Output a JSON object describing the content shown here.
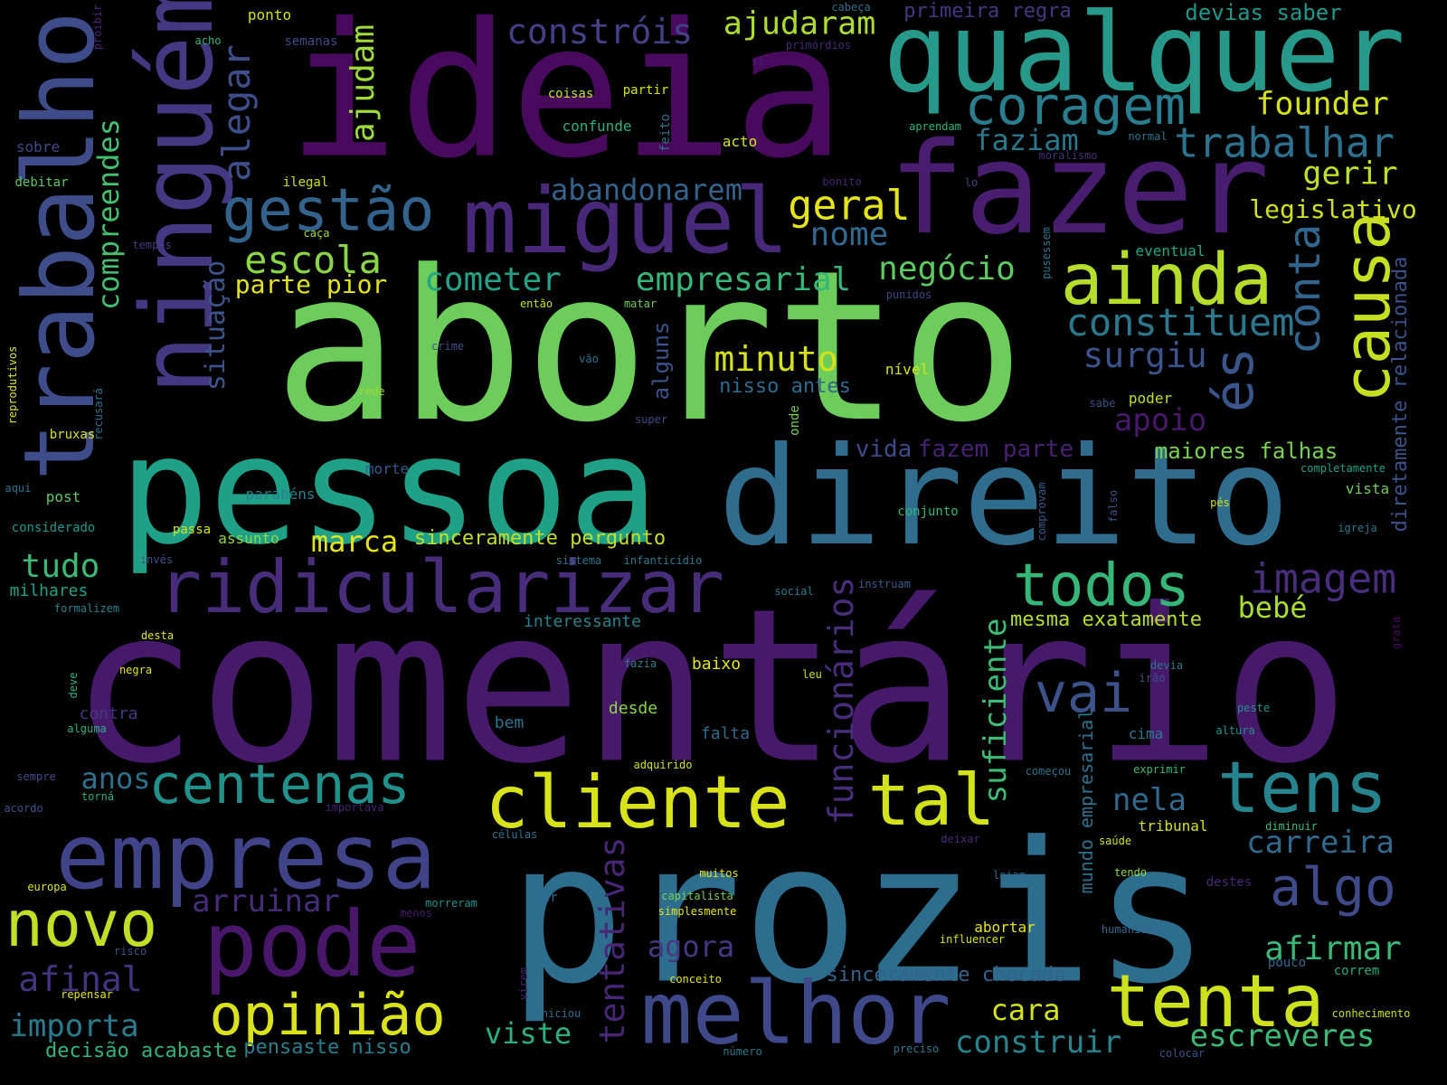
{
  "words": [
    {
      "text": "comentário",
      "color": "#46196a"
    },
    {
      "text": "aborto",
      "color": "#6ccd5a"
    },
    {
      "text": "prozis",
      "color": "#2d6e8e"
    },
    {
      "text": "ideia",
      "color": "#470a5c"
    },
    {
      "text": "pessoa",
      "color": "#1fa187"
    },
    {
      "text": "direito",
      "color": "#2e6d8e"
    },
    {
      "text": "fazer",
      "color": "#481d6f"
    },
    {
      "text": "qualquer",
      "color": "#26998a"
    },
    {
      "text": "ninguém",
      "color": "#453882"
    },
    {
      "text": "trabalho",
      "color": "#3e4c8a"
    },
    {
      "text": "miguel",
      "color": "#482878"
    },
    {
      "text": "empresa",
      "color": "#404387"
    },
    {
      "text": "pode",
      "color": "#481769"
    },
    {
      "text": "melhor",
      "color": "#3f4889"
    },
    {
      "text": "ridicularizar",
      "color": "#472c7a"
    },
    {
      "text": "cliente",
      "color": "#d8e219"
    },
    {
      "text": "tenta",
      "color": "#cde11d"
    },
    {
      "text": "tens",
      "color": "#25848e"
    },
    {
      "text": "tal",
      "color": "#d2e21b"
    },
    {
      "text": "ainda",
      "color": "#b5de2b"
    },
    {
      "text": "causa",
      "color": "#c6e021"
    },
    {
      "text": "novo",
      "color": "#c0df25"
    },
    {
      "text": "opinião",
      "color": "#dae319"
    },
    {
      "text": "todos",
      "color": "#35b779"
    },
    {
      "text": "gestão",
      "color": "#33638d"
    },
    {
      "text": "centenas",
      "color": "#21918c"
    },
    {
      "text": "coragem",
      "color": "#287d8e"
    },
    {
      "text": "trabalhar",
      "color": "#2c728e"
    },
    {
      "text": "algo",
      "color": "#3f4a8a"
    },
    {
      "text": "imagem",
      "color": "#472d7b"
    },
    {
      "text": "vai",
      "color": "#3b528b"
    },
    {
      "text": "conta",
      "color": "#32658e"
    },
    {
      "text": "és",
      "color": "#39558c"
    },
    {
      "text": "alegar",
      "color": "#3d4e8a"
    },
    {
      "text": "constróis",
      "color": "#424086"
    },
    {
      "text": "ajudaram",
      "color": "#addc30"
    },
    {
      "text": "compreendes",
      "color": "#44bf70"
    },
    {
      "text": "ajudam",
      "color": "#a0da39"
    },
    {
      "text": "situação",
      "color": "#3b528b"
    },
    {
      "text": "escola",
      "color": "#8bd646"
    },
    {
      "text": "geral",
      "color": "#e5e419"
    },
    {
      "text": "nome",
      "color": "#31688e"
    },
    {
      "text": "negócio",
      "color": "#5ec962"
    },
    {
      "text": "abandonarem",
      "color": "#33638d"
    },
    {
      "text": "cometer",
      "color": "#20a386"
    },
    {
      "text": "empresarial",
      "color": "#35b779"
    },
    {
      "text": "constituem",
      "color": "#2a788e"
    },
    {
      "text": "surgiu",
      "color": "#3b528b"
    },
    {
      "text": "founder",
      "color": "#d5e21a"
    },
    {
      "text": "gerir",
      "color": "#bddf26"
    },
    {
      "text": "faziam",
      "color": "#2a788e"
    },
    {
      "text": "legislativo",
      "color": "#d0e11c"
    },
    {
      "text": "minuto",
      "color": "#d5e21a"
    },
    {
      "text": "apoio",
      "color": "#48186a"
    },
    {
      "text": "funcionários",
      "color": "#472d7b"
    },
    {
      "text": "suficiente",
      "color": "#3dbc74"
    },
    {
      "text": "tentativas",
      "color": "#482677"
    },
    {
      "text": "arruinar",
      "color": "#472c7a"
    },
    {
      "text": "afinal",
      "color": "#46337f"
    },
    {
      "text": "importa",
      "color": "#287c8e"
    },
    {
      "text": "viste",
      "color": "#2ab07f"
    },
    {
      "text": "agora",
      "color": "#453781"
    },
    {
      "text": "cara",
      "color": "#d2e21b"
    },
    {
      "text": "construir",
      "color": "#25848e"
    },
    {
      "text": "escreveres",
      "color": "#3aba76"
    },
    {
      "text": "afirmar",
      "color": "#3aba76"
    },
    {
      "text": "carreira",
      "color": "#31688e"
    },
    {
      "text": "nela",
      "color": "#31688e"
    },
    {
      "text": "bebé",
      "color": "#a8db34"
    },
    {
      "text": "marca",
      "color": "#e5e419"
    },
    {
      "text": "tudo",
      "color": "#3aba76"
    },
    {
      "text": "anos",
      "color": "#2d708e"
    },
    {
      "text": "parte pior",
      "color": "#e2e418"
    },
    {
      "text": "vida",
      "color": "#3e4a89"
    },
    {
      "text": "fazem parte",
      "color": "#482173"
    },
    {
      "text": "alguns",
      "color": "#3b528b"
    },
    {
      "text": "maiores falhas",
      "color": "#7ad151"
    },
    {
      "text": "mesma exatamente",
      "color": "#b5de2b"
    },
    {
      "text": "sinceramente pergunto",
      "color": "#c2df23"
    },
    {
      "text": "sinceramente chocado",
      "color": "#33638d"
    },
    {
      "text": "decisão acabaste",
      "color": "#2fb47c"
    },
    {
      "text": "pensaste nisso",
      "color": "#287d8e"
    },
    {
      "text": "primeira regra",
      "color": "#453882"
    },
    {
      "text": "devias saber",
      "color": "#1f988b"
    },
    {
      "text": "diretamente relacionada",
      "color": "#3b528b"
    },
    {
      "text": "nisso antes",
      "color": "#31688e"
    },
    {
      "text": "interessante",
      "color": "#26828e"
    },
    {
      "text": "mundo empresarial",
      "color": "#2d708e"
    },
    {
      "text": "milhares",
      "color": "#1fa187"
    },
    {
      "text": "desde",
      "color": "#8bd646"
    },
    {
      "text": "baixo",
      "color": "#e5e419"
    },
    {
      "text": "falta",
      "color": "#31688e"
    },
    {
      "text": "bem",
      "color": "#2c728e"
    },
    {
      "text": "contra",
      "color": "#453882"
    },
    {
      "text": "assunto",
      "color": "#8fd744"
    },
    {
      "text": "passa",
      "color": "#d5e21a"
    },
    {
      "text": "parabéns",
      "color": "#26828e"
    },
    {
      "text": "morte",
      "color": "#365c8d"
    },
    {
      "text": "post",
      "color": "#5ec962"
    },
    {
      "text": "nível",
      "color": "#d8e219"
    },
    {
      "text": "poder",
      "color": "#c2df23"
    },
    {
      "text": "vista",
      "color": "#6ccd5a"
    },
    {
      "text": "cima",
      "color": "#2a788e"
    },
    {
      "text": "tribunal",
      "color": "#d8e219"
    },
    {
      "text": "abortar",
      "color": "#e5e419"
    },
    {
      "text": "acto",
      "color": "#d5e21a"
    },
    {
      "text": "ponto",
      "color": "#d2e21b"
    },
    {
      "text": "semanas",
      "color": "#3e4a89"
    },
    {
      "text": "acho",
      "color": "#35b779"
    },
    {
      "text": "proibir",
      "color": "#482475"
    },
    {
      "text": "cabeça",
      "color": "#2c728e"
    },
    {
      "text": "primórdios",
      "color": "#482777"
    },
    {
      "text": "si",
      "color": "#481a6c"
    },
    {
      "text": "coisas",
      "color": "#c0df25"
    },
    {
      "text": "partir",
      "color": "#d5e21a"
    },
    {
      "text": "confunde",
      "color": "#29af7f"
    },
    {
      "text": "feito",
      "color": "#2c728e"
    },
    {
      "text": "aprendam",
      "color": "#2db27d"
    },
    {
      "text": "normal",
      "color": "#2c728e"
    },
    {
      "text": "moralismo",
      "color": "#472d7b"
    },
    {
      "text": "sobre",
      "color": "#3e4a89"
    },
    {
      "text": "debitar",
      "color": "#5ec962"
    },
    {
      "text": "ilegal",
      "color": "#d0e11c"
    },
    {
      "text": "bonito",
      "color": "#482575"
    },
    {
      "text": "lo",
      "color": "#3e4a89"
    },
    {
      "text": "caça",
      "color": "#a0da39"
    },
    {
      "text": "tempos",
      "color": "#453882"
    },
    {
      "text": "pusessem",
      "color": "#2a788e"
    },
    {
      "text": "eventual",
      "color": "#22a884"
    },
    {
      "text": "então",
      "color": "#c8e020"
    },
    {
      "text": "matar",
      "color": "#6ccd5a"
    },
    {
      "text": "punidos",
      "color": "#3e4a89"
    },
    {
      "text": "crime",
      "color": "#3b528b"
    },
    {
      "text": "vão",
      "color": "#2c728e"
    },
    {
      "text": "rede",
      "color": "#a0da39"
    },
    {
      "text": "reprodutivos",
      "color": "#dde318"
    },
    {
      "text": "recusará",
      "color": "#2c728e"
    },
    {
      "text": "super",
      "color": "#3e4a89"
    },
    {
      "text": "onde",
      "color": "#7ad151"
    },
    {
      "text": "sabe",
      "color": "#3b528b"
    },
    {
      "text": "bruxas",
      "color": "#dae319"
    },
    {
      "text": "aqui",
      "color": "#2c728e"
    },
    {
      "text": "completamente",
      "color": "#1fa187"
    },
    {
      "text": "considerado",
      "color": "#1f988b"
    },
    {
      "text": "comprovam",
      "color": "#365c8d"
    },
    {
      "text": "falso",
      "color": "#3b528b"
    },
    {
      "text": "conjunto",
      "color": "#35b779"
    },
    {
      "text": "pés",
      "color": "#d2e21b"
    },
    {
      "text": "igreja",
      "color": "#2a788e"
    },
    {
      "text": "invés",
      "color": "#39558c"
    },
    {
      "text": "sistema",
      "color": "#2c728e"
    },
    {
      "text": "infanticídio",
      "color": "#2a788e"
    },
    {
      "text": "instruam",
      "color": "#365c8d"
    },
    {
      "text": "social",
      "color": "#287c8e"
    },
    {
      "text": "formalizem",
      "color": "#26828e"
    },
    {
      "text": "grata",
      "color": "#460a5d"
    },
    {
      "text": "desta",
      "color": "#e5e419"
    },
    {
      "text": "negra",
      "color": "#e5e419"
    },
    {
      "text": "deve",
      "color": "#2db27d"
    },
    {
      "text": "alguma",
      "color": "#2db27d"
    },
    {
      "text": "fazia",
      "color": "#287c8e"
    },
    {
      "text": "leu",
      "color": "#c8e020"
    },
    {
      "text": "devia",
      "color": "#2a788e"
    },
    {
      "text": "irão",
      "color": "#3b528b"
    },
    {
      "text": "peste",
      "color": "#21918c"
    },
    {
      "text": "altura",
      "color": "#21918c"
    },
    {
      "text": "sempre",
      "color": "#3e4a89"
    },
    {
      "text": "adquirido",
      "color": "#d2e21b"
    },
    {
      "text": "começou",
      "color": "#2c728e"
    },
    {
      "text": "exprimir",
      "color": "#35b779"
    },
    {
      "text": "acordo",
      "color": "#3b528b"
    },
    {
      "text": "torná",
      "color": "#29af7f"
    },
    {
      "text": "importava",
      "color": "#482374"
    },
    {
      "text": "células",
      "color": "#2c728e"
    },
    {
      "text": "deixar",
      "color": "#472a7a"
    },
    {
      "text": "diminuir",
      "color": "#3aba76"
    },
    {
      "text": "saúde",
      "color": "#d2e21b"
    },
    {
      "text": "tendo",
      "color": "#8fd744"
    },
    {
      "text": "leiam",
      "color": "#31688e"
    },
    {
      "text": "destes",
      "color": "#482576"
    },
    {
      "text": "europa",
      "color": "#dde318"
    },
    {
      "text": "muitos",
      "color": "#e5e419"
    },
    {
      "text": "capitalista",
      "color": "#7ad151"
    },
    {
      "text": "simplesmente",
      "color": "#e5e419"
    },
    {
      "text": "ser",
      "color": "#31688e"
    },
    {
      "text": "morreram",
      "color": "#21918c"
    },
    {
      "text": "menos",
      "color": "#481a6c"
    },
    {
      "text": "influencer",
      "color": "#d8e219"
    },
    {
      "text": "humanidade",
      "color": "#31688e"
    },
    {
      "text": "risco",
      "color": "#3b528b"
    },
    {
      "text": "pouco",
      "color": "#31688e"
    },
    {
      "text": "correm",
      "color": "#25ab82"
    },
    {
      "text": "repensar",
      "color": "#e5e419"
    },
    {
      "text": "conceito",
      "color": "#e5e419"
    },
    {
      "text": "virem",
      "color": "#482374"
    },
    {
      "text": "iniciou",
      "color": "#2c728e"
    },
    {
      "text": "conhecimento",
      "color": "#c8e020"
    },
    {
      "text": "número",
      "color": "#2a788e"
    },
    {
      "text": "preciso",
      "color": "#2a788e"
    },
    {
      "text": "colocar",
      "color": "#3b528b"
    }
  ]
}
